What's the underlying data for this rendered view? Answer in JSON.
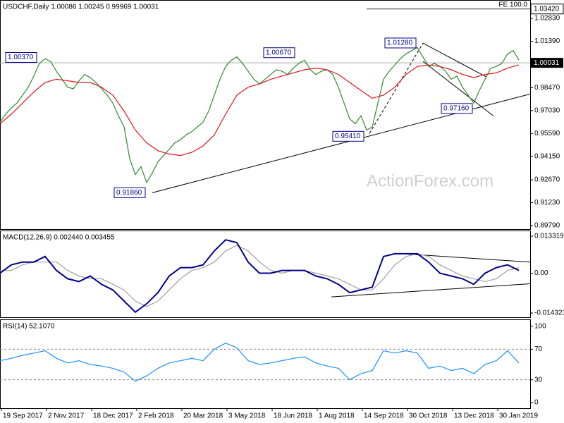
{
  "watermark": "ActionForex.com",
  "chart_data": [
    {
      "type": "line",
      "title": "USDCHF,Daily  1.00086 1.00245 0.99969 1.00031",
      "xlim": [
        0,
        376
      ],
      "ylim": [
        0.8957,
        1.0394
      ],
      "yticks": [
        {
          "value": 0.8979,
          "label": "0.89790"
        },
        {
          "value": 0.9123,
          "label": "0.91230"
        },
        {
          "value": 0.9267,
          "label": "0.92670"
        },
        {
          "value": 0.9415,
          "label": "0.94150"
        },
        {
          "value": 0.9559,
          "label": "0.95590"
        },
        {
          "value": 0.9703,
          "label": "0.97030"
        },
        {
          "value": 0.9847,
          "label": "0.98470"
        },
        {
          "value": 1.0139,
          "label": "1.01390"
        },
        {
          "value": 1.0283,
          "label": "1.02830"
        }
      ],
      "last_price": {
        "value": 1.00031,
        "label": "1.00031"
      },
      "fe_level": {
        "value": 1.0342,
        "label": "1.03420",
        "text": "FE 100.0",
        "x": [
          260,
          376
        ]
      },
      "series": [
        {
          "color": "#2e8b2e",
          "x": [
            0,
            4,
            8,
            12,
            16,
            20,
            24,
            28,
            32,
            36,
            40,
            44,
            48,
            52,
            56,
            60,
            64,
            68,
            72,
            76,
            80,
            84,
            88,
            92,
            96,
            100,
            104,
            108,
            112,
            116,
            120,
            124,
            128,
            132,
            136,
            140,
            144,
            148,
            152,
            156,
            160,
            164,
            168,
            172,
            176,
            180,
            184,
            188,
            192,
            196,
            200,
            204,
            208,
            212,
            216,
            220,
            224,
            228,
            232,
            236,
            240,
            244,
            248,
            252,
            256,
            260,
            264,
            268,
            272,
            276,
            280,
            284,
            288,
            292,
            296,
            300,
            304,
            308,
            312,
            316,
            320,
            324,
            328,
            332,
            336,
            340,
            344,
            348,
            352,
            356,
            360,
            364,
            368
          ],
          "values": [
            0.963,
            0.968,
            0.972,
            0.975,
            0.98,
            0.985,
            0.992,
            1.0,
            1.003,
            1.001,
            0.995,
            0.99,
            0.985,
            0.984,
            0.989,
            0.993,
            0.991,
            0.988,
            0.984,
            0.98,
            0.975,
            0.967,
            0.96,
            0.94,
            0.93,
            0.935,
            0.925,
            0.931,
            0.938,
            0.942,
            0.946,
            0.95,
            0.952,
            0.955,
            0.957,
            0.96,
            0.963,
            0.97,
            0.98,
            0.99,
            0.998,
            1.002,
            1.004,
            1.0,
            0.995,
            0.99,
            0.987,
            0.99,
            0.993,
            0.996,
            0.995,
            0.993,
            0.997,
            1.0,
            1.002,
            0.996,
            0.993,
            0.995,
            0.996,
            0.993,
            0.985,
            0.975,
            0.965,
            0.962,
            0.967,
            0.958,
            0.96,
            0.975,
            0.99,
            0.995,
            0.999,
            1.003,
            1.006,
            1.008,
            1.01,
            1.004,
            0.998,
            1.0,
            0.998,
            0.995,
            0.99,
            0.992,
            0.985,
            0.98,
            0.975,
            0.983,
            0.99,
            0.997,
            0.998,
            1.0,
            1.006,
            1.008,
            1.002
          ]
        },
        {
          "color": "#e0141e",
          "x": [
            0,
            8,
            16,
            24,
            32,
            40,
            48,
            56,
            64,
            72,
            80,
            88,
            96,
            104,
            112,
            120,
            128,
            136,
            144,
            152,
            160,
            168,
            176,
            184,
            192,
            200,
            208,
            216,
            224,
            232,
            240,
            248,
            256,
            264,
            272,
            280,
            288,
            296,
            304,
            312,
            320,
            328,
            336,
            344,
            352,
            360,
            368
          ],
          "values": [
            0.962,
            0.968,
            0.975,
            0.982,
            0.988,
            0.99,
            0.989,
            0.988,
            0.988,
            0.985,
            0.98,
            0.97,
            0.958,
            0.95,
            0.945,
            0.943,
            0.942,
            0.944,
            0.948,
            0.955,
            0.968,
            0.98,
            0.985,
            0.987,
            0.99,
            0.992,
            0.994,
            0.996,
            0.997,
            0.996,
            0.993,
            0.988,
            0.983,
            0.978,
            0.98,
            0.985,
            0.993,
            0.998,
            0.999,
            0.998,
            0.996,
            0.993,
            0.991,
            0.993,
            0.994,
            0.997,
            0.999
          ]
        }
      ],
      "trendlines": [
        {
          "x": [
            108,
            376
          ],
          "values": [
            0.9186,
            0.9807
          ],
          "style": "solid"
        },
        {
          "x": [
            300,
            345
          ],
          "values": [
            1.0127,
            0.9914
          ],
          "style": "solid"
        },
        {
          "x": [
            300,
            350
          ],
          "values": [
            1.0012,
            0.9669
          ],
          "style": "solid"
        },
        {
          "x": [
            262,
            300
          ],
          "values": [
            0.9558,
            1.0127
          ],
          "style": "dashed"
        }
      ],
      "annotations": [
        {
          "text": "1.00370",
          "value": 1.0037,
          "x": 4
        },
        {
          "text": "1.00670",
          "value": 1.0067,
          "x": 187
        },
        {
          "text": "1.01280",
          "value": 1.0128,
          "x": 273
        },
        {
          "text": "0.95410",
          "value": 0.9541,
          "x": 236
        },
        {
          "text": "0.91860",
          "value": 0.9186,
          "x": 81
        },
        {
          "text": "0.97160",
          "value": 0.9716,
          "x": 313
        }
      ]
    },
    {
      "type": "line",
      "title": "MACD(12,26,9) 0.002440 0.003455",
      "xlim": [
        0,
        376
      ],
      "ylim": [
        -0.01583,
        0.01508
      ],
      "yticks": [
        0.013319,
        {
          "value": 0,
          "label": "0.00"
        },
        -0.014323
      ],
      "series": [
        {
          "color": "#a0a0a0",
          "x": [
            0,
            8,
            16,
            24,
            32,
            40,
            48,
            56,
            64,
            72,
            80,
            88,
            96,
            104,
            112,
            120,
            128,
            136,
            144,
            152,
            160,
            168,
            176,
            184,
            192,
            200,
            208,
            216,
            224,
            232,
            240,
            248,
            256,
            264,
            272,
            280,
            288,
            296,
            304,
            312,
            320,
            328,
            336,
            344,
            352,
            360,
            368
          ],
          "values": [
            0.001,
            0.001,
            0.003,
            0.004,
            0.004,
            0.004,
            0.001,
            -0.001,
            -0.002,
            -0.002,
            -0.004,
            -0.006,
            -0.01,
            -0.012,
            -0.01,
            -0.006,
            -0.002,
            0.001,
            0.002,
            0.004,
            0.008,
            0.01,
            0.008,
            0.004,
            0.001,
            0.0,
            0.001,
            0.001,
            0.0,
            -0.001,
            -0.002,
            -0.004,
            -0.006,
            -0.006,
            -0.002,
            0.003,
            0.006,
            0.007,
            0.006,
            0.003,
            0.001,
            -0.001,
            -0.002,
            -0.003,
            -0.002,
            0.001,
            0.002
          ]
        },
        {
          "color": "#00008b",
          "x": [
            0,
            8,
            16,
            24,
            32,
            40,
            48,
            56,
            64,
            72,
            80,
            88,
            96,
            104,
            112,
            120,
            128,
            136,
            144,
            152,
            160,
            168,
            176,
            184,
            192,
            200,
            208,
            216,
            224,
            232,
            240,
            248,
            256,
            264,
            272,
            280,
            288,
            296,
            304,
            312,
            320,
            328,
            336,
            344,
            352,
            360,
            368
          ],
          "values": [
            0,
            0.003,
            0.004,
            0.004,
            0.006,
            0.001,
            -0.002,
            -0.003,
            -0.001,
            -0.004,
            -0.006,
            -0.01,
            -0.014,
            -0.011,
            -0.007,
            -0.001,
            0.002,
            0.002,
            0.003,
            0.008,
            0.012,
            0.011,
            0.004,
            0,
            0,
            0.001,
            0.001,
            0.001,
            -0.001,
            -0.002,
            -0.004,
            -0.007,
            -0.006,
            -0.005,
            0.006,
            0.007,
            0.007,
            0.007,
            0.004,
            0,
            -0.001,
            -0.002,
            -0.004,
            0,
            0.002,
            0.003,
            0.001
          ]
        }
      ],
      "trendlines": [
        {
          "x": [
            285,
            376
          ],
          "values": [
            0.007,
            0.004
          ],
          "style": "solid"
        },
        {
          "x": [
            235,
            376
          ],
          "values": [
            -0.0085,
            -0.0038
          ],
          "style": "solid"
        }
      ]
    },
    {
      "type": "line",
      "title": "RSI(14) 52.1070",
      "xlim": [
        0,
        376
      ],
      "ylim": [
        -7.3,
        108.2
      ],
      "yticks": [
        0,
        30,
        70,
        100
      ],
      "levels": [
        30,
        70
      ],
      "xticks": [
        {
          "value": 1,
          "label": "19 Sep 2017"
        },
        {
          "value": 33,
          "label": "2 Nov 2017"
        },
        {
          "value": 65,
          "label": "18 Dec 2017"
        },
        {
          "value": 97,
          "label": "2 Feb 2018"
        },
        {
          "value": 129,
          "label": "20 Mar 2018"
        },
        {
          "value": 161,
          "label": "3 May 2018"
        },
        {
          "value": 193,
          "label": "18 Jun 2018"
        },
        {
          "value": 225,
          "label": "1 Aug 2018"
        },
        {
          "value": 257,
          "label": "14 Sep 2018"
        },
        {
          "value": 289,
          "label": "30 Oct 2018"
        },
        {
          "value": 321,
          "label": "13 Dec 2018"
        },
        {
          "value": 353,
          "label": "30 Jan 2019"
        }
      ],
      "series": [
        {
          "color": "#1e90ff",
          "x": [
            0,
            8,
            16,
            24,
            32,
            40,
            48,
            56,
            64,
            72,
            80,
            88,
            96,
            104,
            112,
            120,
            128,
            136,
            144,
            152,
            160,
            168,
            176,
            184,
            192,
            200,
            208,
            216,
            224,
            232,
            240,
            248,
            256,
            264,
            272,
            280,
            288,
            296,
            304,
            312,
            320,
            328,
            336,
            344,
            352,
            360,
            368
          ],
          "values": [
            55,
            58,
            62,
            65,
            68,
            58,
            52,
            55,
            50,
            48,
            45,
            40,
            28,
            35,
            45,
            52,
            55,
            58,
            55,
            70,
            78,
            72,
            55,
            50,
            52,
            55,
            58,
            60,
            52,
            48,
            45,
            30,
            38,
            42,
            68,
            65,
            68,
            65,
            45,
            48,
            42,
            45,
            38,
            50,
            55,
            68,
            52
          ]
        }
      ]
    }
  ]
}
